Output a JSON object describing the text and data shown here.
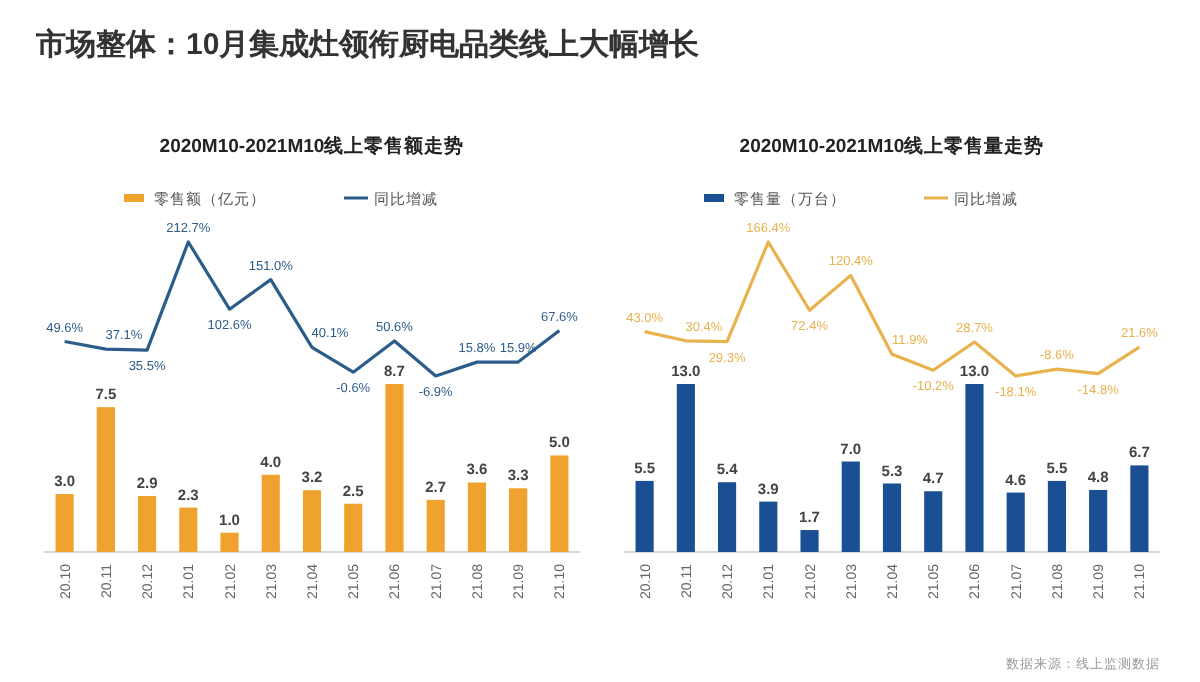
{
  "chart_data": [
    {
      "type": "other",
      "title": "市场整体：10月集成灶领衔厨电品类线上大幅增长"
    },
    {
      "type": "line",
      "title": "2020M10-2021M10线上零售额走势",
      "legend": "top",
      "tick_labels": false,
      "categories": [
        null,
        null,
        null,
        null,
        null,
        null,
        null,
        null,
        null,
        null,
        null,
        null,
        null
      ],
      "series": [
        {
          "name": "同比增减",
          "color": "#2c5d8a",
          "values": [
            49.6,
            37.1,
            35.5,
            212.7,
            102.6,
            151.0,
            40.1,
            -0.6,
            50.6,
            -6.9,
            15.8,
            15.9,
            67.6
          ],
          "value_labels": [
            "49.6%",
            "37.1%",
            "35.5%",
            "212.7%",
            "102.6%",
            "151.0%",
            "40.1%",
            "-0.6%",
            "50.6%",
            "-6.9%",
            "15.8%",
            "15.9%",
            "67.6%"
          ]
        }
      ]
    },
    {
      "type": "bar",
      "legend": "top",
      "tick_labels": "x",
      "categories": [
        "20.10",
        "20.11",
        "20.12",
        "21.01",
        "21.02",
        "21.03",
        "21.04",
        "21.05",
        "21.06",
        "21.07",
        "21.08",
        "21.09",
        "21.10"
      ],
      "series": [
        {
          "name": "零售额（亿元）",
          "color": "#f0a22e",
          "values": [
            3.0,
            7.5,
            2.9,
            2.3,
            1.0,
            4.0,
            3.2,
            2.5,
            8.7,
            2.7,
            3.6,
            3.3,
            5.0
          ],
          "value_labels": [
            "3.0",
            "7.5",
            "2.9",
            "2.3",
            "1.0",
            "4.0",
            "3.2",
            "2.5",
            "8.7",
            "2.7",
            "3.6",
            "3.3",
            "5.0"
          ]
        }
      ]
    },
    {
      "type": "line",
      "title": "2020M10-2021M10线上零售量走势",
      "legend": "top",
      "tick_labels": false,
      "categories": [
        null,
        null,
        null,
        null,
        null,
        null,
        null,
        null,
        null,
        null,
        null,
        null,
        null
      ],
      "series": [
        {
          "name": "同比增减",
          "color": "#e8b24e",
          "values": [
            43.0,
            30.4,
            29.3,
            166.4,
            72.4,
            120.4,
            11.9,
            -10.2,
            28.7,
            -18.1,
            -8.6,
            -14.8,
            21.6
          ],
          "value_labels": [
            "43.0%",
            "30.4%",
            "29.3%",
            "166.4%",
            "72.4%",
            "120.4%",
            "11.9%",
            "-10.2%",
            "28.7%",
            "-18.1%",
            "-8.6%",
            "-14.8%",
            "21.6%"
          ]
        }
      ]
    },
    {
      "type": "bar",
      "legend": "top",
      "tick_labels": "x",
      "categories": [
        "20.10",
        "20.11",
        "20.12",
        "21.01",
        "21.02",
        "21.03",
        "21.04",
        "21.05",
        "21.06",
        "21.07",
        "21.08",
        "21.09",
        "21.10"
      ],
      "series": [
        {
          "name": "零售量（万台）",
          "color": "#1b4f93",
          "values": [
            5.5,
            13.0,
            5.4,
            3.9,
            1.7,
            7.0,
            5.3,
            4.7,
            13.0,
            4.6,
            5.5,
            4.8,
            6.7
          ],
          "value_labels": [
            "5.5",
            "13.0",
            "5.4",
            "3.9",
            "1.7",
            "7.0",
            "5.3",
            "4.7",
            "13.0",
            "4.6",
            "5.5",
            "4.8",
            "6.7"
          ]
        }
      ],
      "annotations": [
        "数据来源：线上监测数据"
      ]
    }
  ]
}
